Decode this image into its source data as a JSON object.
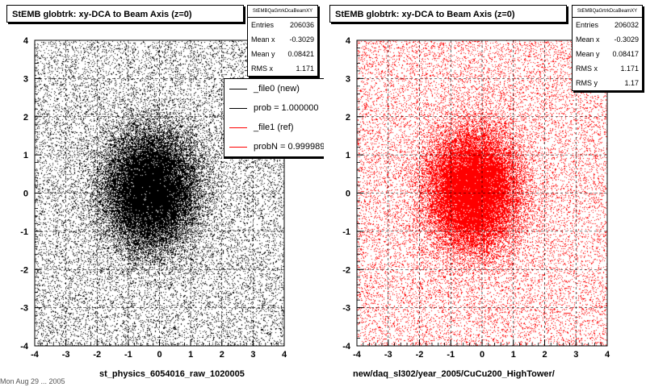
{
  "page": {
    "date_stamp": "Mon Aug 29 ... 2005"
  },
  "charts": [
    {
      "title": "StEMB globtrk: xy-DCA to Beam Axis (z=0)",
      "xlabel": "st_physics_6054016_raw_1020005",
      "stats": {
        "name": "StEMBQaGrtrkDcaBeamXY",
        "rows": [
          {
            "label": "Entries",
            "value": "206036"
          },
          {
            "label": "Mean x",
            "value": "-0.3029"
          },
          {
            "label": "Mean y",
            "value": "0.08421"
          },
          {
            "label": "RMS x",
            "value": "1.171"
          }
        ]
      },
      "legend": [
        {
          "label": "_file0 (new)",
          "color": "#000000"
        },
        {
          "label": "prob = 1.000000",
          "color": "#000000"
        },
        {
          "label": "_file1 (ref)",
          "color": "#ff0000"
        },
        {
          "label": "probN = 0.999989",
          "color": "#ff0000"
        }
      ]
    },
    {
      "title": "StEMB globtrk: xy-DCA to Beam Axis (z=0)",
      "xlabel": "new/daq_sl302/year_2005/CuCu200_HighTower/",
      "stats": {
        "name": "StEMBQaGrtrkDcaBeamXY",
        "rows": [
          {
            "label": "Entries",
            "value": "206032"
          },
          {
            "label": "Mean x",
            "value": "-0.3029"
          },
          {
            "label": "Mean y",
            "value": "0.08417"
          },
          {
            "label": "RMS x",
            "value": "1.171"
          },
          {
            "label": "RMS y",
            "value": "1.17"
          }
        ]
      }
    }
  ],
  "chart_data": [
    {
      "type": "scatter",
      "title": "StEMB globtrk: xy-DCA to Beam Axis (z=0)",
      "xlabel": "st_physics_6054016_raw_1020005",
      "ylabel": "",
      "xlim": [
        -4,
        4
      ],
      "ylim": [
        -4,
        4
      ],
      "x_ticks": [
        "-4",
        "-3",
        "-2",
        "-1",
        "0",
        "1",
        "2",
        "3",
        "4"
      ],
      "y_ticks": [
        "-4",
        "-3",
        "-2",
        "-1",
        "0",
        "1",
        "2",
        "3",
        "4"
      ],
      "grid": true,
      "color": "#000000",
      "entries": 206036,
      "mean_x": -0.3029,
      "mean_y": 0.08421,
      "rms_x": 1.171
    },
    {
      "type": "scatter",
      "title": "StEMB globtrk: xy-DCA to Beam Axis (z=0)",
      "xlabel": "new/daq_sl302/year_2005/CuCu200_HighTower/",
      "ylabel": "",
      "xlim": [
        -4,
        4
      ],
      "ylim": [
        -4,
        4
      ],
      "x_ticks": [
        "-4",
        "-3",
        "-2",
        "-1",
        "0",
        "1",
        "2",
        "3",
        "4"
      ],
      "y_ticks": [
        "-4",
        "-3",
        "-2",
        "-1",
        "0",
        "1",
        "2",
        "3",
        "4"
      ],
      "grid": true,
      "color": "#ff0000",
      "entries": 206032,
      "mean_x": -0.3029,
      "mean_y": 0.08417,
      "rms_x": 1.171,
      "rms_y": 1.17
    }
  ]
}
